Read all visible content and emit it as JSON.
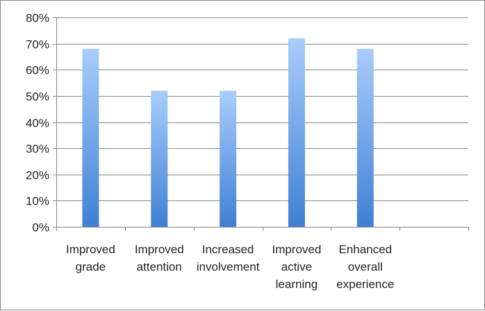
{
  "chart_data": {
    "type": "bar",
    "title": "",
    "xlabel": "",
    "ylabel": "",
    "categories": [
      "Improved grade",
      "Improved attention",
      "Increased involvement",
      "Improved active learning",
      "Enhanced overall experience",
      ""
    ],
    "category_label_lines": [
      [
        "Improved",
        "grade"
      ],
      [
        "Improved",
        "attention"
      ],
      [
        "Increased",
        "involvement"
      ],
      [
        "Improved",
        "active",
        "learning"
      ],
      [
        "Enhanced",
        "overall",
        "experience"
      ],
      []
    ],
    "values": [
      0.68,
      0.52,
      0.52,
      0.72,
      0.68,
      null
    ],
    "ylim": [
      0,
      0.8
    ],
    "y_ticks": [
      0,
      0.1,
      0.2,
      0.3,
      0.4,
      0.5,
      0.6,
      0.7,
      0.8
    ],
    "y_tick_labels": [
      "0%",
      "10%",
      "20%",
      "30%",
      "40%",
      "50%",
      "60%",
      "70%",
      "80%"
    ],
    "grid": true,
    "legend": "none",
    "colors": {
      "bar_top": "#a9cdfb",
      "bar_bottom": "#3f80d4",
      "grid": "#868686",
      "axis": "#868686",
      "text": "#222222"
    }
  }
}
